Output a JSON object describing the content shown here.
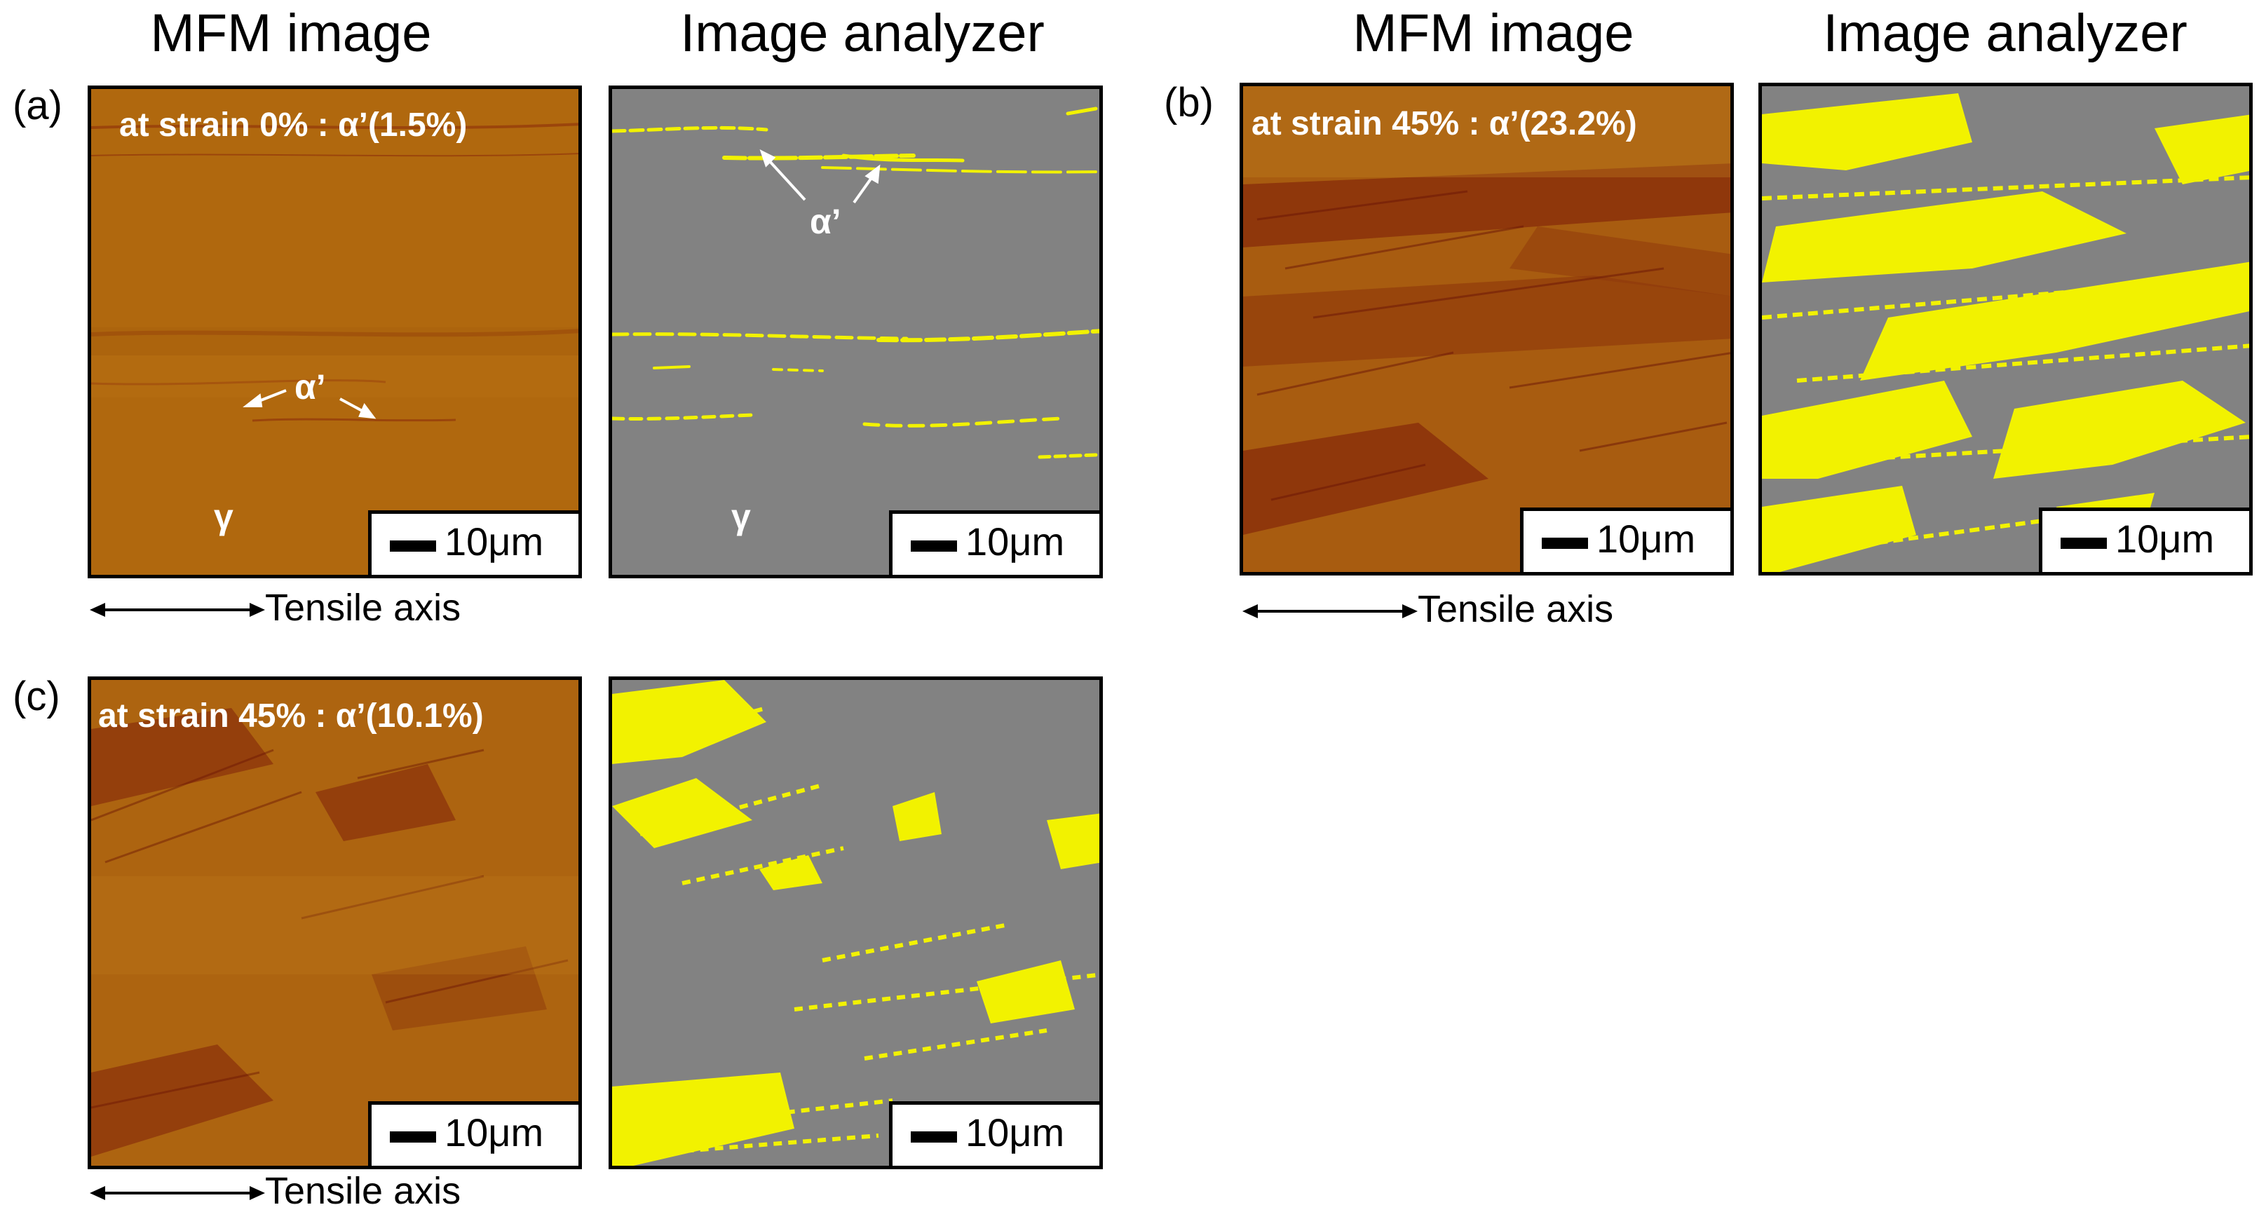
{
  "column_titles": {
    "mfm": "MFM image",
    "analyzer": "Image analyzer"
  },
  "panels": {
    "a": {
      "letter": "(a)",
      "condition": "at strain 0% : α’(1.5%)",
      "phase_alpha": "α’",
      "phase_gamma": "γ"
    },
    "b": {
      "letter": "(b)",
      "condition": "at strain 45% : α’(23.2%)"
    },
    "c": {
      "letter": "(c)",
      "condition": "at strain 45% : α’(10.1%)"
    }
  },
  "scale_bar": "10μm",
  "axis_label": "Tensile axis",
  "colors": {
    "mfm_base": "#b0680e",
    "mfm_dark": "#8a2a0a",
    "analyzer_gray": "#828282",
    "martensite_yellow": "#f2f200"
  }
}
